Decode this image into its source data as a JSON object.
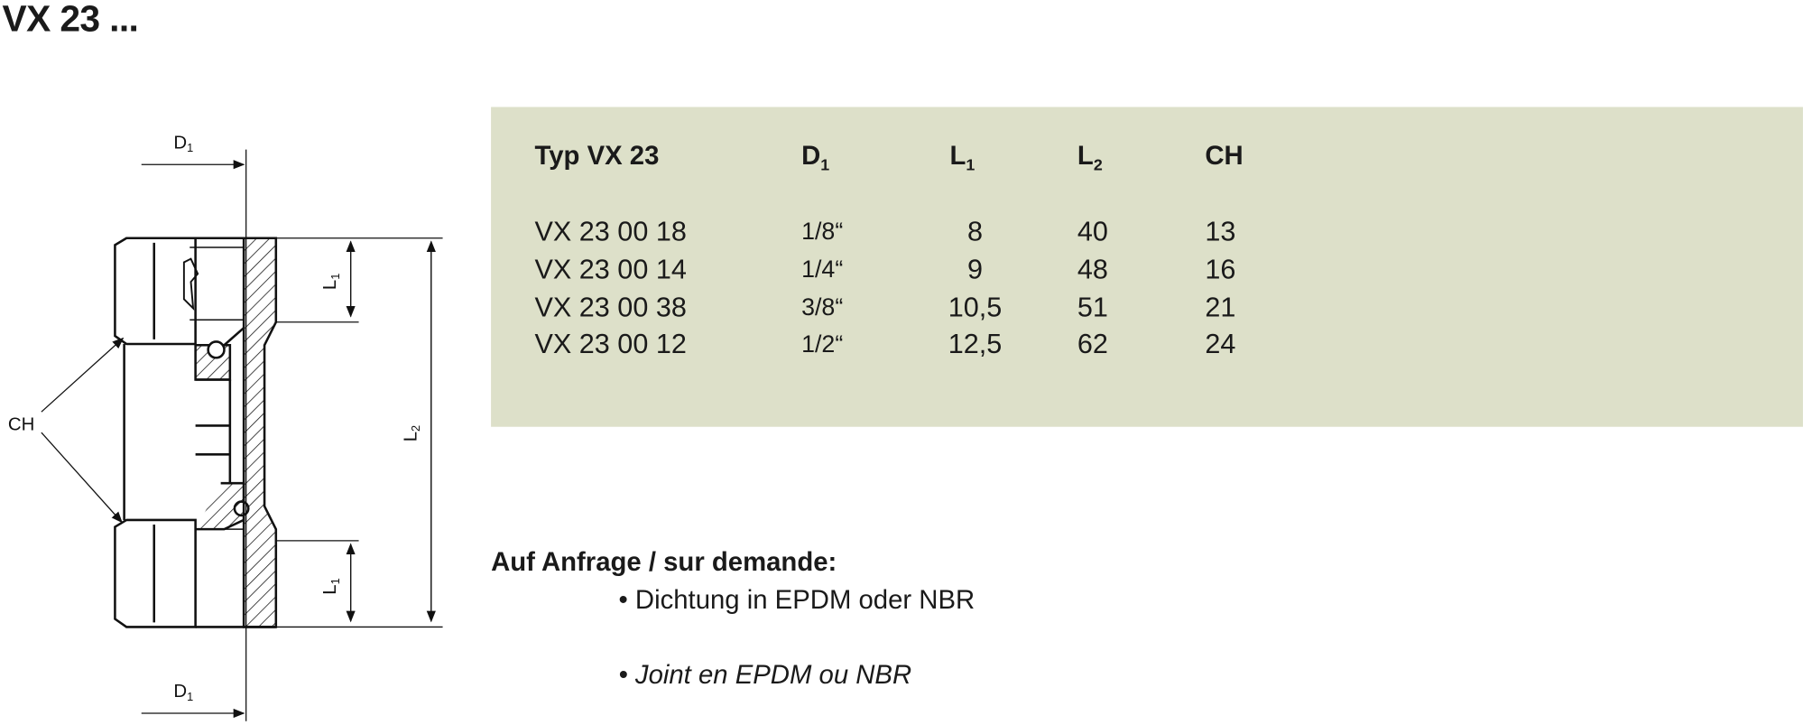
{
  "title": "VX 23 ...",
  "drawing": {
    "labels": {
      "d1_top": "D1",
      "d1_bottom": "D1",
      "ch": "CH",
      "l1_top": "L1",
      "l1_bottom": "L1",
      "l2": "L2"
    }
  },
  "table": {
    "background": "#dde0c9",
    "headers": {
      "type": "Typ VX 23",
      "d1": "D",
      "d1_sub": "1",
      "l1": "L",
      "l1_sub": "1",
      "l2": "L",
      "l2_sub": "2",
      "ch": "CH"
    },
    "rows": [
      {
        "type": "VX 23 00 18",
        "d1": "1/8“",
        "l1": "8",
        "l2": "40",
        "ch": "13"
      },
      {
        "type": "VX 23 00 14",
        "d1": "1/4“",
        "l1": "9",
        "l2": "48",
        "ch": "16"
      },
      {
        "type": "VX 23 00 38",
        "d1": "3/8“",
        "l1": "10,5",
        "l2": "51",
        "ch": "21"
      },
      {
        "type": "VX 23 00 12",
        "d1": "1/2“",
        "l1": "12,5",
        "l2": "62",
        "ch": "24"
      }
    ]
  },
  "notes": {
    "title": "Auf Anfrage / sur demande:",
    "items": [
      "• Dichtung in EPDM oder NBR",
      "• Joint en EPDM ou NBR"
    ]
  }
}
